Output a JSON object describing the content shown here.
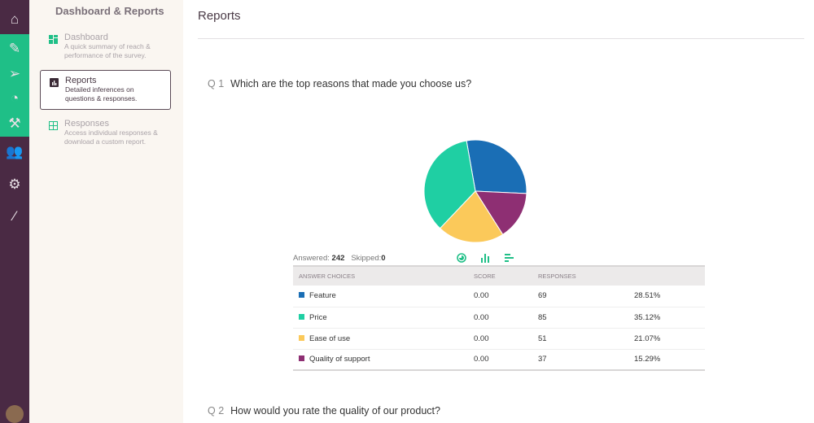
{
  "rail": {
    "icons": [
      "home-icon",
      "pencil-icon",
      "send-icon",
      "pie-icon",
      "wrench-icon",
      "users-icon",
      "gear-icon",
      "wand-icon"
    ]
  },
  "sidebar": {
    "title": "Dashboard & Reports",
    "items": [
      {
        "label": "Dashboard",
        "desc": "A quick summary of reach & performance of the survey.",
        "icon": "dashboard-icon",
        "active": false
      },
      {
        "label": "Reports",
        "desc": "Detailed inferences on questions & responses.",
        "icon": "bar-chart-icon",
        "active": true
      },
      {
        "label": "Responses",
        "desc": "Access individual responses & download a custom report.",
        "icon": "grid-icon",
        "active": false
      }
    ]
  },
  "main": {
    "title": "Reports",
    "q1": {
      "num": "Q 1",
      "text": "Which are the top reasons that made you choose us?"
    },
    "q2": {
      "num": "Q 2",
      "text": "How would you rate the quality of our product?"
    },
    "stats": {
      "answered_label": "Answered:",
      "answered": "242",
      "skipped_label": "Skipped:",
      "skipped": "0"
    },
    "view_icons": [
      "pie-view-icon",
      "bar-view-icon",
      "hbar-view-icon"
    ],
    "table": {
      "headers": [
        "ANSWER CHOICES",
        "SCORE",
        "RESPONSES",
        ""
      ]
    }
  },
  "chart_data": {
    "type": "pie",
    "categories": [
      "Feature",
      "Price",
      "Ease of use",
      "Quality of support"
    ],
    "values": [
      69,
      85,
      51,
      37
    ],
    "percents": [
      "28.51%",
      "35.12%",
      "21.07%",
      "15.29%"
    ],
    "scores": [
      "0.00",
      "0.00",
      "0.00",
      "0.00"
    ],
    "colors": [
      "#1a6eb5",
      "#1fcfa3",
      "#fbc95a",
      "#8e2f73"
    ],
    "draw_order": [
      "Feature",
      "Quality of support",
      "Ease of use",
      "Price"
    ]
  }
}
